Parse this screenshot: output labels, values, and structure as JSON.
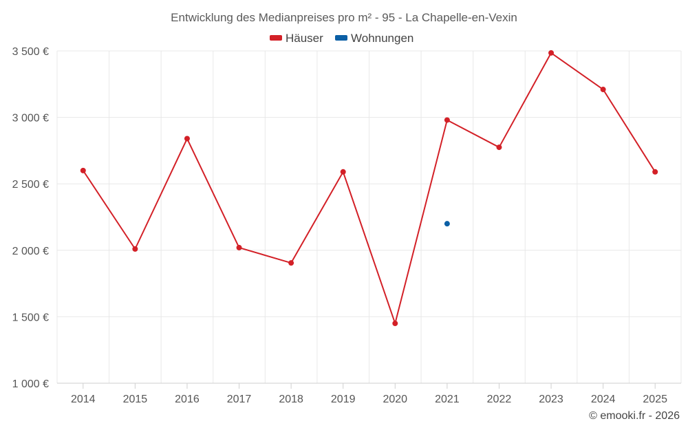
{
  "chart_data": {
    "type": "line",
    "title": "Entwicklung des Medianpreises pro m² - 95 - La Chapelle-en-Vexin",
    "categories": [
      "2014",
      "2015",
      "2016",
      "2017",
      "2018",
      "2019",
      "2020",
      "2021",
      "2022",
      "2023",
      "2024",
      "2025"
    ],
    "series": [
      {
        "name": "Häuser",
        "color": "#d32027",
        "values": [
          2600,
          2010,
          2840,
          2020,
          1905,
          2590,
          1450,
          2980,
          2775,
          3485,
          3210,
          2590
        ]
      },
      {
        "name": "Wohnungen",
        "color": "#0b5fa5",
        "values": [
          null,
          null,
          null,
          null,
          null,
          null,
          null,
          2200,
          null,
          null,
          null,
          null
        ]
      }
    ],
    "y_ticks": [
      "1 000 €",
      "1 500 €",
      "2 000 €",
      "2 500 €",
      "3 000 €",
      "3 500 €"
    ],
    "ylim": [
      1000,
      3500
    ],
    "legend": "top-center",
    "grid": true,
    "credit": "© emooki.fr - 2026"
  }
}
